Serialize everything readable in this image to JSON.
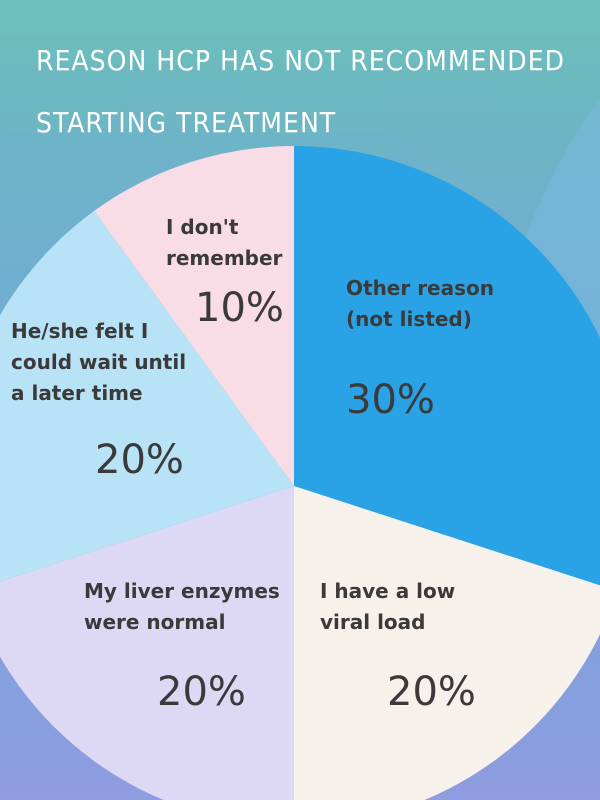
{
  "chart_data": {
    "type": "pie",
    "title": "Reason HCP has not recommended starting treatment",
    "slices": [
      {
        "label": "Other reason (not listed)",
        "label_lines": [
          "Other reason",
          "(not listed)"
        ],
        "value": 30,
        "display": "30%",
        "color": "#2aa3e6"
      },
      {
        "label": "I have a low viral load",
        "label_lines": [
          "I have a low",
          "viral load"
        ],
        "value": 20,
        "display": "20%",
        "color": "#f7f1ec"
      },
      {
        "label": "My liver enzymes were normal",
        "label_lines": [
          "My liver enzymes",
          "were normal"
        ],
        "value": 20,
        "display": "20%",
        "color": "#ddd8f4"
      },
      {
        "label": "He/she felt I could wait until a later time",
        "label_lines": [
          "He/she felt I",
          "could wait until",
          "a later time"
        ],
        "value": 20,
        "display": "20%",
        "color": "#b8e2f6"
      },
      {
        "label": "I don't remember",
        "label_lines": [
          "I don't",
          "remember"
        ],
        "value": 10,
        "display": "10%",
        "color": "#f8dce6"
      }
    ]
  },
  "colors": {
    "background_top": "#6cb8c2",
    "background_bottom": "#8f9be0",
    "text": "#3a3a3a",
    "title_text": "#ffffff"
  }
}
